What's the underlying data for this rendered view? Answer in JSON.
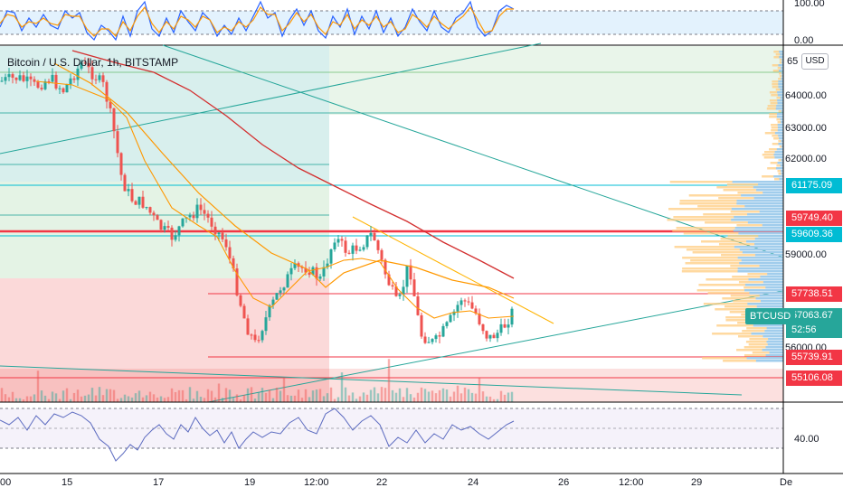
{
  "header": {
    "title": "Bitcoin / U.S. Dollar, 1h, BITSTAMP",
    "currency_button": "USD"
  },
  "axis": {
    "stoch_top_labels": [
      "100.00",
      "0.00"
    ],
    "price_ticks": [
      "65",
      "64000.00",
      "63000.00",
      "62000.00",
      "59000.00",
      "56000.00"
    ],
    "rsi_label": "40.00",
    "date_labels": [
      "00",
      "15",
      "17",
      "19",
      "12:00",
      "22",
      "24",
      "26",
      "12:00",
      "29",
      "De"
    ]
  },
  "price_labels": [
    {
      "text": "61175.09",
      "color": "#00bcd4"
    },
    {
      "text": "59749.40",
      "color": "#f23645"
    },
    {
      "text": "59609.36",
      "color": "#00bcd4"
    },
    {
      "text": "57738.51",
      "color": "#f23645"
    },
    {
      "text": "57063.67",
      "color": "#26a69a"
    },
    {
      "text": "52:56",
      "color": "#26a69a"
    },
    {
      "text": "55739.91",
      "color": "#f23645"
    },
    {
      "text": "55106.08",
      "color": "#f23645"
    }
  ],
  "symbol_tag": "BTCUSD",
  "colors": {
    "up": "#26a69a",
    "down": "#ef5350",
    "ma_fast": "#ff9800",
    "ma_slow": "#d32f2f",
    "rsi": "#7e57c2",
    "stoch_k": "#2962ff",
    "stoch_d": "#ff9800"
  }
}
